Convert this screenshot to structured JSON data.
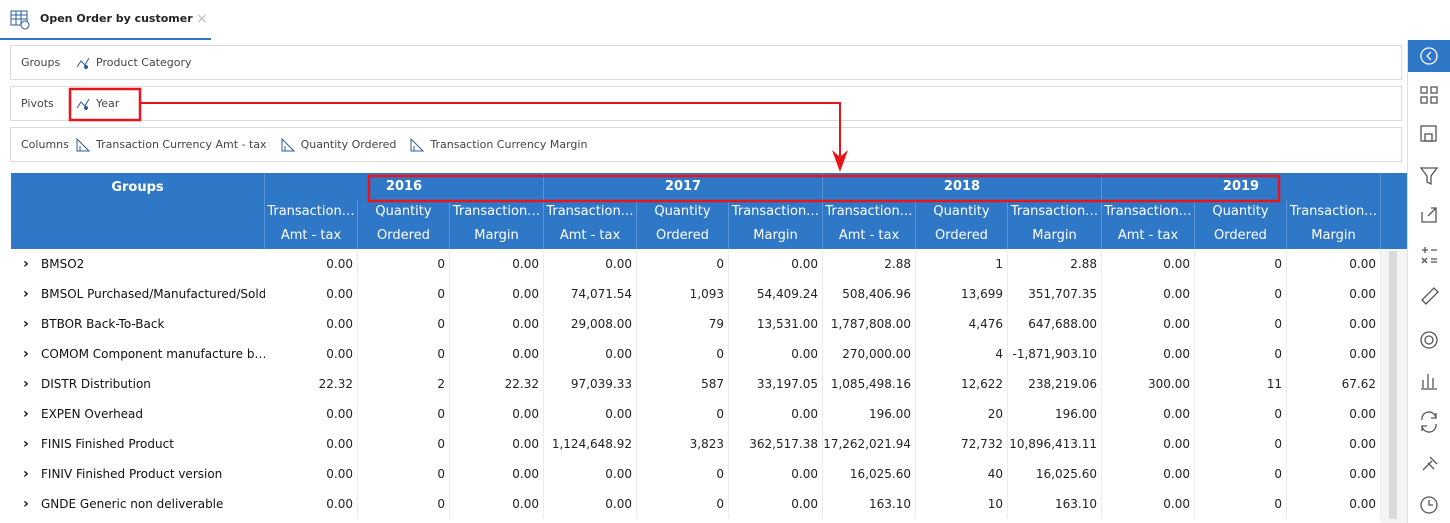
{
  "tab": {
    "title": "Open Order by customer"
  },
  "zones": [
    {
      "label": "Groups",
      "items": [
        "Product Category"
      ]
    },
    {
      "label": "Pivots",
      "items": [
        "Year"
      ]
    },
    {
      "label": "Columns",
      "items": [
        "Transaction Currency Amt - tax",
        "Quantity Ordered",
        "Transaction Currency Margin"
      ]
    }
  ],
  "table": {
    "groups_header": "Groups",
    "years": [
      "2016",
      "2017",
      "2018",
      "2019"
    ],
    "subheaders": [
      [
        "Transaction…",
        "Amt - tax"
      ],
      [
        "Quantity",
        "Ordered"
      ],
      [
        "Transaction…",
        "Margin"
      ]
    ],
    "rows": [
      {
        "label": "BMSO2",
        "cells": [
          "0.00",
          "0",
          "0.00",
          "0.00",
          "0",
          "0.00",
          "2.88",
          "1",
          "2.88",
          "0.00",
          "0",
          "0.00"
        ]
      },
      {
        "label": "BMSOL Purchased/Manufactured/Sold",
        "cells": [
          "0.00",
          "0",
          "0.00",
          "74,071.54",
          "1,093",
          "54,409.24",
          "508,406.96",
          "13,699",
          "351,707.35",
          "0.00",
          "0",
          "0.00"
        ]
      },
      {
        "label": "BTBOR Back-To-Back",
        "cells": [
          "0.00",
          "0",
          "0.00",
          "29,008.00",
          "79",
          "13,531.00",
          "1,787,808.00",
          "4,476",
          "647,688.00",
          "0.00",
          "0",
          "0.00"
        ]
      },
      {
        "label": "COMOM Component manufacture b…",
        "cells": [
          "0.00",
          "0",
          "0.00",
          "0.00",
          "0",
          "0.00",
          "270,000.00",
          "4",
          "-1,871,903.10",
          "0.00",
          "0",
          "0.00"
        ]
      },
      {
        "label": "DISTR Distribution",
        "cells": [
          "22.32",
          "2",
          "22.32",
          "97,039.33",
          "587",
          "33,197.05",
          "1,085,498.16",
          "12,622",
          "238,219.06",
          "300.00",
          "11",
          "67.62"
        ]
      },
      {
        "label": "EXPEN Overhead",
        "cells": [
          "0.00",
          "0",
          "0.00",
          "0.00",
          "0",
          "0.00",
          "196.00",
          "20",
          "196.00",
          "0.00",
          "0",
          "0.00"
        ]
      },
      {
        "label": "FINIS Finished Product",
        "cells": [
          "0.00",
          "0",
          "0.00",
          "1,124,648.92",
          "3,823",
          "362,517.38",
          "17,262,021.94",
          "72,732",
          "10,896,413.11",
          "0.00",
          "0",
          "0.00"
        ]
      },
      {
        "label": "FINIV Finished Product version",
        "cells": [
          "0.00",
          "0",
          "0.00",
          "0.00",
          "0",
          "0.00",
          "16,025.60",
          "40",
          "16,025.60",
          "0.00",
          "0",
          "0.00"
        ]
      },
      {
        "label": "GNDE Generic non deliverable",
        "cells": [
          "0.00",
          "0",
          "0.00",
          "0.00",
          "0",
          "0.00",
          "163.10",
          "10",
          "163.10",
          "0.00",
          "0",
          "0.00"
        ]
      }
    ]
  }
}
